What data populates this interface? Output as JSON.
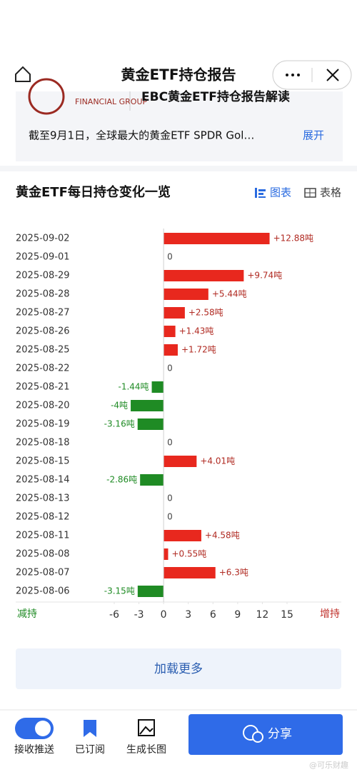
{
  "header": {
    "title": "黄金ETF持仓报告"
  },
  "article": {
    "logo_text": "FINANCIAL GROUP",
    "title": "EBC黄金ETF持仓报告解读",
    "summary": "截至9月1日，全球最大的黄金ETF SPDR Gol…",
    "expand": "展开"
  },
  "section": {
    "title": "黄金ETF每日持仓变化一览",
    "tab_chart": "图表",
    "tab_table": "表格"
  },
  "chart_data": {
    "type": "bar",
    "orientation": "horizontal",
    "categories": [
      "2025-09-02",
      "2025-09-01",
      "2025-08-29",
      "2025-08-28",
      "2025-08-27",
      "2025-08-26",
      "2025-08-25",
      "2025-08-22",
      "2025-08-21",
      "2025-08-20",
      "2025-08-19",
      "2025-08-18",
      "2025-08-15",
      "2025-08-14",
      "2025-08-13",
      "2025-08-12",
      "2025-08-11",
      "2025-08-08",
      "2025-08-07",
      "2025-08-06"
    ],
    "values": [
      12.88,
      0,
      9.74,
      5.44,
      2.58,
      1.43,
      1.72,
      0,
      -1.44,
      -4,
      -3.16,
      0,
      4.01,
      -2.86,
      0,
      0,
      4.58,
      0.55,
      6.3,
      -3.15
    ],
    "value_labels": [
      "+12.88吨",
      "0",
      "+9.74吨",
      "+5.44吨",
      "+2.58吨",
      "+1.43吨",
      "+1.72吨",
      "0",
      "-1.44吨",
      "-4吨",
      "-3.16吨",
      "0",
      "+4.01吨",
      "-2.86吨",
      "0",
      "0",
      "+4.58吨",
      "+0.55吨",
      "+6.3吨",
      "-3.15吨"
    ],
    "positive_color": "#e8281e",
    "negative_color": "#1f8b24",
    "xlim": [
      -6,
      15
    ],
    "xticks": [
      -6,
      -3,
      0,
      3,
      6,
      9,
      12,
      15
    ],
    "x_label_left": "减持",
    "x_label_right": "增持"
  },
  "load_more": "加载更多",
  "footer": {
    "push": "接收推送",
    "subscribed": "已订阅",
    "long_image": "生成长图",
    "share": "分享",
    "watermark": "@可乐财趣"
  }
}
